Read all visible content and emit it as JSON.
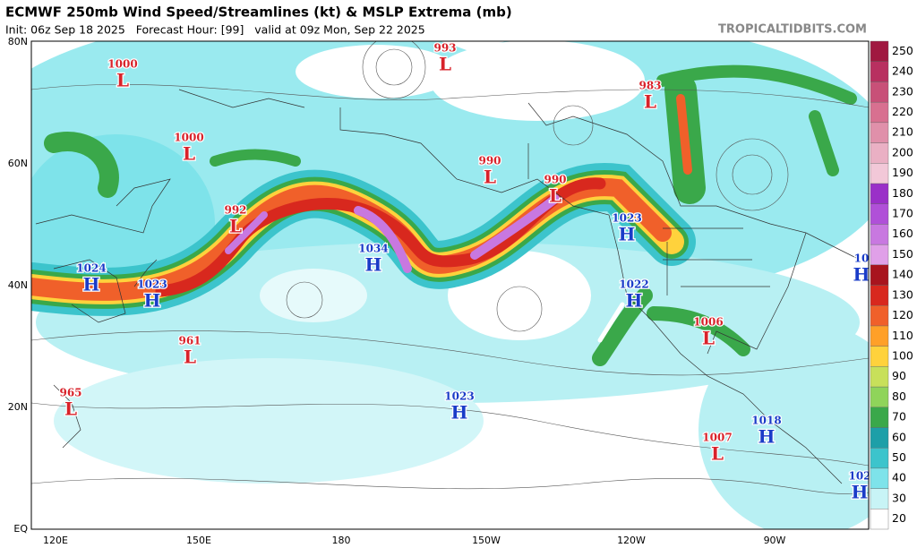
{
  "header": {
    "title": "ECMWF 250mb Wind Speed/Streamlines (kt) & MSLP Extrema (mb)",
    "subtitle": "Init: 06z Sep 18 2025   Forecast Hour: [99]   valid at 09z Mon, Sep 22 2025",
    "site": "TROPICALTIDBITS.COM"
  },
  "lat_labels": [
    "80N",
    "60N",
    "40N",
    "20N",
    "EQ"
  ],
  "lon_labels": [
    "120E",
    "150E",
    "180",
    "150W",
    "120W",
    "90W"
  ],
  "colorbar": {
    "levels": [
      20,
      30,
      40,
      50,
      60,
      70,
      80,
      90,
      100,
      110,
      120,
      130,
      140,
      150,
      160,
      170,
      180,
      190,
      200,
      210,
      220,
      230,
      240,
      250
    ],
    "colors": [
      "#ffffff",
      "#c8f4f6",
      "#7ee3ea",
      "#3cc4cc",
      "#1d9fa8",
      "#3aa84a",
      "#8fd45a",
      "#c8e05a",
      "#ffd23c",
      "#ffa028",
      "#f0602a",
      "#d8281e",
      "#a8141e",
      "#e0a0e8",
      "#c878e0",
      "#b050d8",
      "#9a30c8",
      "#f2c8d8",
      "#eab0c4",
      "#e090aa",
      "#d87090",
      "#c85078",
      "#b83060",
      "#a01840"
    ]
  },
  "centers": [
    {
      "value": "1000",
      "letter": "L"
    },
    {
      "value": "1000",
      "letter": "L"
    },
    {
      "value": "993",
      "letter": "L"
    },
    {
      "value": "983",
      "letter": "L"
    },
    {
      "value": "990",
      "letter": "L"
    },
    {
      "value": "990",
      "letter": "L"
    },
    {
      "value": "992",
      "letter": "L"
    },
    {
      "value": "1023",
      "letter": "H"
    },
    {
      "value": "1034",
      "letter": "H"
    },
    {
      "value": "1024",
      "letter": "H"
    },
    {
      "value": "1023",
      "letter": "H"
    },
    {
      "value": "1022",
      "letter": "H"
    },
    {
      "value": "1006",
      "letter": "L"
    },
    {
      "value": "961",
      "letter": "L"
    },
    {
      "value": "965",
      "letter": "L"
    },
    {
      "value": "1023",
      "letter": "H"
    },
    {
      "value": "1018",
      "letter": "H"
    },
    {
      "value": "1007",
      "letter": "L"
    },
    {
      "value": "102",
      "letter": "H"
    },
    {
      "value": "10",
      "letter": "H"
    }
  ]
}
